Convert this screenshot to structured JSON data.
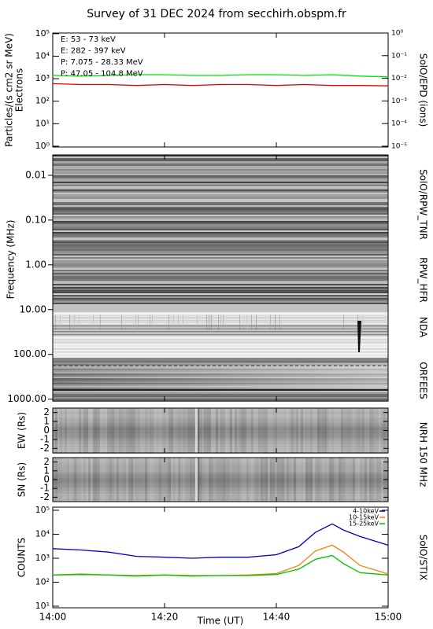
{
  "title": "Survey of 31 DEC 2024 from secchirh.obspm.fr",
  "chart_data": [
    {
      "type": "line",
      "ylabel": [
        "Particles/(s cm2 sr MeV)",
        "Electrons"
      ],
      "y2label": "SolO/EPD (ions)",
      "log_scale": true,
      "legend": "upper-left",
      "x": [
        "14:00",
        "14:05",
        "14:10",
        "14:15",
        "14:20",
        "14:25",
        "14:30",
        "14:35",
        "14:40",
        "14:45",
        "14:50",
        "14:55",
        "15:00"
      ],
      "xlim": [
        "14:00",
        "15:00"
      ],
      "ylim": [
        0.92,
        107000
      ],
      "yticks": [
        {
          "value": 1,
          "label": "10⁰"
        },
        {
          "value": 10,
          "label": "10¹"
        },
        {
          "value": 100,
          "label": "10²"
        },
        {
          "value": 1000,
          "label": "10³"
        },
        {
          "value": 10000,
          "label": "10⁴"
        },
        {
          "value": 100000,
          "label": "10⁵"
        }
      ],
      "y2lim": [
        9.2e-06,
        1
      ],
      "y2ticks": [
        {
          "value": 1e-05,
          "label": "10⁻⁵"
        },
        {
          "value": 0.0001,
          "label": "10⁻⁴"
        },
        {
          "value": 0.001,
          "label": "10⁻³"
        },
        {
          "value": 0.01,
          "label": "10⁻²"
        },
        {
          "value": 0.1,
          "label": "10⁻¹"
        },
        {
          "value": 1,
          "label": "10⁰"
        }
      ],
      "series": [
        {
          "name": "E: 53 - 73 keV",
          "color": "#00e000",
          "values": [
            1400,
            1300,
            1400,
            1500,
            1500,
            1400,
            1400,
            1500,
            1500,
            1400,
            1500,
            1300,
            1200
          ]
        },
        {
          "name": "E: 282 - 397 keV",
          "color": "#e00000",
          "values": [
            600,
            550,
            550,
            500,
            550,
            500,
            550,
            550,
            500,
            550,
            500,
            500,
            480
          ]
        },
        {
          "name": "P: 7.075 - 28.33 MeV",
          "color": "#000000",
          "axis": "y2",
          "values": [
            null,
            null,
            null,
            null,
            null,
            null,
            null,
            null,
            null,
            null,
            null,
            null,
            null
          ]
        },
        {
          "name": "P: 47.05 - 104.8 MeV",
          "color": "#0000d0",
          "axis": "y2",
          "values": [
            null,
            null,
            null,
            null,
            null,
            null,
            null,
            null,
            null,
            null,
            null,
            null,
            null
          ]
        }
      ]
    },
    {
      "type": "spectrogram",
      "ylabel": "Frequency (MHz)",
      "log_scale": true,
      "y_inverted": true,
      "ylim": [
        0.0035,
        1100
      ],
      "yticks": [
        0.01,
        {
          "value": 0.1,
          "label": "0.10"
        },
        {
          "value": 1,
          "label": "1.00"
        },
        {
          "value": 10,
          "label": "10.00"
        },
        {
          "value": 100,
          "label": "100.00"
        },
        {
          "value": 1000,
          "label": "1000.00"
        }
      ],
      "instruments": [
        "SolO/RPW_TNR",
        "RPW_HFR",
        "NDA",
        "ORFEES"
      ]
    },
    {
      "type": "image",
      "ylabel": "EW (Rs)",
      "instrument": "NRH 150 MHz",
      "ylim": [
        -2.5,
        2.5
      ],
      "yticks": [
        -2,
        -1,
        0,
        1,
        2
      ]
    },
    {
      "type": "image",
      "ylabel": "SN (Rs)",
      "ylim": [
        -2.5,
        2.5
      ],
      "yticks": [
        -2,
        -1,
        0,
        1,
        2
      ]
    },
    {
      "type": "line",
      "ylabel": "COUNTS",
      "y2label": "SolO/STIX",
      "xlabel": "Time (UT)",
      "log_scale": true,
      "legend": "upper-right",
      "x": [
        "14:00",
        "14:05",
        "14:10",
        "14:15",
        "14:20",
        "14:25",
        "14:30",
        "14:35",
        "14:40",
        "14:44",
        "14:47",
        "14:50",
        "14:52",
        "14:55",
        "15:00"
      ],
      "xlim": [
        "14:00",
        "15:00"
      ],
      "xticks": [
        "14:00",
        "14:20",
        "14:40",
        "15:00"
      ],
      "ylim": [
        8.6,
        135000
      ],
      "yticks": [
        {
          "value": 10,
          "label": "10¹"
        },
        {
          "value": 100,
          "label": "10²"
        },
        {
          "value": 1000,
          "label": "10³"
        },
        {
          "value": 10000,
          "label": "10⁴"
        },
        {
          "value": 100000,
          "label": "10⁵"
        }
      ],
      "series": [
        {
          "name": "4-10keV",
          "color": "#0000c0",
          "values": [
            2500,
            2200,
            1800,
            1200,
            1100,
            1000,
            1100,
            1100,
            1400,
            3000,
            12000,
            27000,
            15000,
            8000,
            3500
          ]
        },
        {
          "name": "10-15keV",
          "color": "#f08000",
          "values": [
            200,
            220,
            200,
            190,
            200,
            190,
            190,
            200,
            230,
            500,
            2000,
            3500,
            1800,
            500,
            220
          ]
        },
        {
          "name": "15-25keV",
          "color": "#00c000",
          "values": [
            200,
            210,
            200,
            180,
            200,
            180,
            190,
            190,
            210,
            350,
            900,
            1300,
            600,
            250,
            200
          ]
        }
      ]
    }
  ]
}
